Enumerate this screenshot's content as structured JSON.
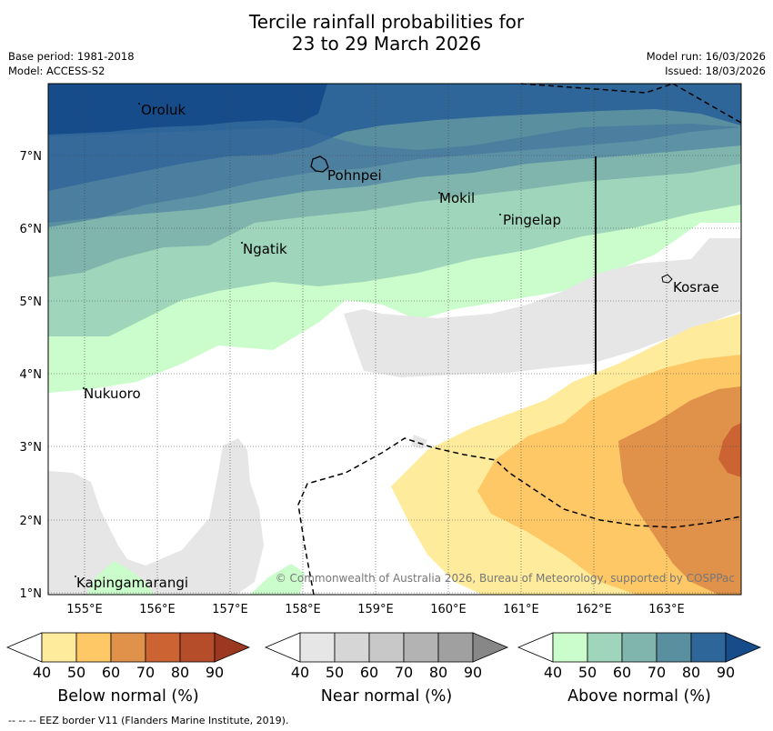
{
  "title": {
    "line1": "Tercile rainfall probabilities for",
    "line2": "23 to 29 March 2026"
  },
  "meta": {
    "base_period": "Base period: 1981-2018",
    "model": "Model: ACCESS-S2",
    "model_run": "Model run: 16/03/2026",
    "issued": "Issued: 18/03/2026"
  },
  "map": {
    "longitude_ticks": [
      "155°E",
      "156°E",
      "157°E",
      "158°E",
      "159°E",
      "160°E",
      "161°E",
      "162°E",
      "163°E"
    ],
    "latitude_ticks": [
      "7°N",
      "6°N",
      "5°N",
      "4°N",
      "3°N",
      "2°N",
      "1°N"
    ],
    "places": [
      "Oroluk",
      "Pohnpei",
      "Mokil",
      "Pingelap",
      "Ngatik",
      "Kosrae",
      "Nukuoro",
      "Kapingamarangi"
    ],
    "copyright": "© Commonwealth of Australia 2026, Bureau of Meteorology, supported by COSPPac"
  },
  "colorbars": [
    {
      "title": "Below normal (%)",
      "ticks": [
        "40",
        "50",
        "60",
        "70",
        "80",
        "90"
      ],
      "colors": [
        "#ffffff",
        "#feeb9c",
        "#fdc865",
        "#e0924a",
        "#cc6333",
        "#b54d2a",
        "#9c3720"
      ]
    },
    {
      "title": "Near normal (%)",
      "ticks": [
        "40",
        "50",
        "60",
        "70",
        "80",
        "90"
      ],
      "colors": [
        "#ffffff",
        "#e6e6e6",
        "#d6d6d6",
        "#c8c8c8",
        "#b3b3b3",
        "#a0a0a0",
        "#878787"
      ]
    },
    {
      "title": "Above normal (%)",
      "ticks": [
        "40",
        "50",
        "60",
        "70",
        "80",
        "90"
      ],
      "colors": [
        "#ffffff",
        "#cbfccb",
        "#9ed5bb",
        "#7fb5ad",
        "#5a8fa0",
        "#2f6699",
        "#164c89"
      ]
    }
  ],
  "footnote": "--  --  -- EEZ border V11 (Flanders Marine Institute, 2019)."
}
